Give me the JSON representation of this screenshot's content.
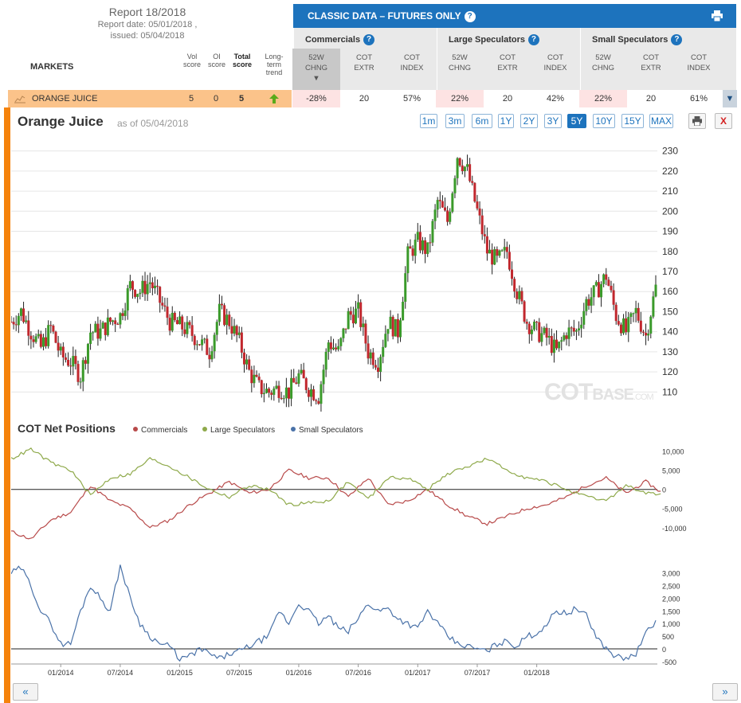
{
  "report": {
    "title": "Report 18/2018",
    "report_date": "Report date: 05/01/2018 ,",
    "issued": "issued: 05/04/2018"
  },
  "table": {
    "markets_label": "MARKETS",
    "cols": {
      "vol1": "Vol",
      "vol2": "score",
      "oi1": "OI",
      "oi2": "score",
      "tot1": "Total",
      "tot2": "score",
      "lt1": "Long-",
      "lt2": "term",
      "lt3": "trend"
    },
    "classic_title": "CLASSIC DATA – FUTURES ONLY",
    "groups": {
      "comm": "Commercials",
      "large": "Large Speculators",
      "small": "Small Speculators"
    },
    "sub": {
      "a1": "52W",
      "a2": "CHNG",
      "b1": "COT",
      "b2": "EXTR",
      "c1": "COT",
      "c2": "INDEX"
    },
    "row": {
      "market": "ORANGE JUICE",
      "vol": "5",
      "oi": "0",
      "total": "5",
      "comm_chg": "-28%",
      "comm_extr": "20",
      "comm_index": "57%",
      "large_chg": "22%",
      "large_extr": "20",
      "large_index": "42%",
      "small_chg": "22%",
      "small_extr": "20",
      "small_index": "61%"
    }
  },
  "chart_header": {
    "title": "Orange Juice",
    "as_of": "as of 05/04/2018",
    "ranges": [
      "1m",
      "3m",
      "6m",
      "1Y",
      "2Y",
      "3Y",
      "5Y",
      "10Y",
      "15Y",
      "MAX"
    ],
    "selected_range": "5Y",
    "close_label": "X"
  },
  "watermark": {
    "a": "COT",
    "b": "BASE",
    "c": ".COM"
  },
  "cot": {
    "title": "COT Net Positions",
    "legend": [
      "Commercials",
      "Large Speculators",
      "Small Speculators"
    ]
  },
  "nav": {
    "prev": "«",
    "next": "»"
  },
  "colors": {
    "accent": "#1d73bd",
    "up": "#3a9a2a",
    "down": "#c1272d",
    "commercials": "#b84a4a",
    "large": "#8ea94a",
    "small": "#4a72a8",
    "orange": "#f5820b"
  },
  "chart_data": [
    {
      "type": "line",
      "name": "price",
      "title": "Orange Juice",
      "y_ticks": [
        110,
        120,
        130,
        140,
        150,
        160,
        170,
        180,
        190,
        200,
        210,
        220,
        230
      ],
      "ylim": [
        103,
        235
      ],
      "x_ticks": [
        "01/2014",
        "07/2014",
        "01/2015",
        "07/2015",
        "01/2016",
        "07/2016",
        "01/2017",
        "07/2017",
        "01/2018"
      ],
      "x_months": [
        -5,
        60
      ],
      "points": [
        [
          -5,
          145
        ],
        [
          -4,
          150
        ],
        [
          -3,
          140
        ],
        [
          -2,
          132
        ],
        [
          -1,
          142
        ],
        [
          0,
          128
        ],
        [
          1,
          125
        ],
        [
          2,
          118
        ],
        [
          3,
          140
        ],
        [
          4,
          140
        ],
        [
          5,
          145
        ],
        [
          6,
          148
        ],
        [
          7,
          163
        ],
        [
          8,
          160
        ],
        [
          9,
          165
        ],
        [
          10,
          155
        ],
        [
          11,
          145
        ],
        [
          12,
          143
        ],
        [
          13,
          140
        ],
        [
          14,
          135
        ],
        [
          15,
          130
        ],
        [
          16,
          150
        ],
        [
          17,
          145
        ],
        [
          18,
          135
        ],
        [
          19,
          120
        ],
        [
          20,
          112
        ],
        [
          21,
          110
        ],
        [
          22,
          112
        ],
        [
          23,
          110
        ],
        [
          24,
          118
        ],
        [
          25,
          112
        ],
        [
          26,
          108
        ],
        [
          27,
          135
        ],
        [
          28,
          130
        ],
        [
          29,
          148
        ],
        [
          30,
          150
        ],
        [
          31,
          130
        ],
        [
          32,
          125
        ],
        [
          33,
          145
        ],
        [
          34,
          140
        ],
        [
          35,
          178
        ],
        [
          36,
          185
        ],
        [
          37,
          180
        ],
        [
          38,
          205
        ],
        [
          39,
          195
        ],
        [
          40,
          228
        ],
        [
          41,
          220
        ],
        [
          42,
          200
        ],
        [
          43,
          180
        ],
        [
          44,
          175
        ],
        [
          45,
          180
        ],
        [
          46,
          160
        ],
        [
          47,
          145
        ],
        [
          48,
          140
        ],
        [
          49,
          137
        ],
        [
          50,
          130
        ],
        [
          51,
          140
        ],
        [
          52,
          140
        ],
        [
          53,
          155
        ],
        [
          54,
          160
        ],
        [
          55,
          168
        ],
        [
          56,
          148
        ],
        [
          57,
          140
        ],
        [
          58,
          150
        ],
        [
          59,
          138
        ],
        [
          60,
          162
        ]
      ]
    },
    {
      "type": "line",
      "name": "net",
      "title": "COT Net Positions",
      "y_ticks": [
        10000,
        5000,
        0,
        -5000,
        -10000
      ],
      "ylim": [
        -14000,
        12000
      ],
      "series": [
        {
          "name": "Commercials",
          "points": [
            [
              -5,
              -11000
            ],
            [
              -3,
              -13000
            ],
            [
              -1,
              -8000
            ],
            [
              1,
              -6000
            ],
            [
              3,
              1000
            ],
            [
              5,
              -3000
            ],
            [
              7,
              -5000
            ],
            [
              9,
              -10000
            ],
            [
              11,
              -8000
            ],
            [
              13,
              -4000
            ],
            [
              15,
              -1000
            ],
            [
              17,
              2000
            ],
            [
              19,
              -1000
            ],
            [
              21,
              0
            ],
            [
              23,
              5000
            ],
            [
              25,
              3000
            ],
            [
              27,
              3000
            ],
            [
              29,
              -2000
            ],
            [
              31,
              3000
            ],
            [
              33,
              -4000
            ],
            [
              35,
              -3000
            ],
            [
              37,
              0
            ],
            [
              39,
              -4000
            ],
            [
              41,
              -7000
            ],
            [
              43,
              -9000
            ],
            [
              45,
              -7000
            ],
            [
              47,
              -5000
            ],
            [
              49,
              -4000
            ],
            [
              51,
              -2000
            ],
            [
              53,
              1000
            ],
            [
              55,
              3000
            ],
            [
              57,
              -1000
            ],
            [
              59,
              2000
            ],
            [
              61,
              -1500
            ]
          ]
        },
        {
          "name": "Large Speculators",
          "points": [
            [
              -5,
              8000
            ],
            [
              -3,
              10500
            ],
            [
              -1,
              7000
            ],
            [
              1,
              5000
            ],
            [
              3,
              -1500
            ],
            [
              5,
              3000
            ],
            [
              7,
              4000
            ],
            [
              9,
              8000
            ],
            [
              11,
              6000
            ],
            [
              13,
              3000
            ],
            [
              15,
              0
            ],
            [
              17,
              -2000
            ],
            [
              19,
              1000
            ],
            [
              21,
              0
            ],
            [
              23,
              -4000
            ],
            [
              25,
              -3500
            ],
            [
              27,
              -3000
            ],
            [
              29,
              2000
            ],
            [
              31,
              -2500
            ],
            [
              33,
              3000
            ],
            [
              35,
              3000
            ],
            [
              37,
              0
            ],
            [
              39,
              4000
            ],
            [
              41,
              6000
            ],
            [
              43,
              8000
            ],
            [
              45,
              5000
            ],
            [
              47,
              3000
            ],
            [
              49,
              2000
            ],
            [
              51,
              0
            ],
            [
              53,
              -2000
            ],
            [
              55,
              -3000
            ],
            [
              57,
              1000
            ],
            [
              59,
              -1000
            ],
            [
              61,
              -1500
            ]
          ]
        },
        {
          "name": "Small Speculators",
          "points": [
            [
              -5,
              3000
            ],
            [
              -4,
              3200
            ],
            [
              -3,
              2500
            ],
            [
              -2,
              1500
            ],
            [
              -1,
              1000
            ],
            [
              0,
              200
            ],
            [
              1,
              200
            ],
            [
              2,
              1500
            ],
            [
              3,
              2500
            ],
            [
              4,
              2000
            ],
            [
              5,
              1500
            ],
            [
              6,
              3300
            ],
            [
              7,
              2000
            ],
            [
              8,
              1000
            ],
            [
              9,
              500
            ],
            [
              10,
              200
            ],
            [
              11,
              100
            ],
            [
              12,
              -400
            ],
            [
              13,
              -300
            ],
            [
              14,
              0
            ],
            [
              15,
              -200
            ],
            [
              16,
              -400
            ],
            [
              17,
              -200
            ],
            [
              18,
              -100
            ],
            [
              19,
              100
            ],
            [
              20,
              300
            ],
            [
              21,
              500
            ],
            [
              22,
              1500
            ],
            [
              23,
              1000
            ],
            [
              24,
              1800
            ],
            [
              25,
              1500
            ],
            [
              26,
              1000
            ],
            [
              27,
              1300
            ],
            [
              28,
              800
            ],
            [
              29,
              700
            ],
            [
              30,
              1200
            ],
            [
              31,
              1800
            ],
            [
              32,
              1500
            ],
            [
              33,
              1600
            ],
            [
              34,
              1200
            ],
            [
              35,
              1000
            ],
            [
              36,
              800
            ],
            [
              37,
              1500
            ],
            [
              38,
              1000
            ],
            [
              39,
              500
            ],
            [
              40,
              200
            ],
            [
              41,
              100
            ],
            [
              42,
              0
            ],
            [
              43,
              -100
            ],
            [
              44,
              200
            ],
            [
              45,
              300
            ],
            [
              46,
              100
            ],
            [
              47,
              500
            ],
            [
              48,
              600
            ],
            [
              49,
              1000
            ],
            [
              50,
              1500
            ],
            [
              51,
              1400
            ],
            [
              52,
              1600
            ],
            [
              53,
              1300
            ],
            [
              54,
              500
            ],
            [
              55,
              0
            ],
            [
              56,
              -300
            ],
            [
              57,
              -400
            ],
            [
              58,
              -200
            ],
            [
              59,
              600
            ],
            [
              60,
              1100
            ]
          ]
        }
      ],
      "y2_ticks": [
        3000,
        2500,
        2000,
        1500,
        1000,
        500,
        0,
        -500
      ],
      "y2lim": [
        -600,
        3400
      ]
    }
  ]
}
